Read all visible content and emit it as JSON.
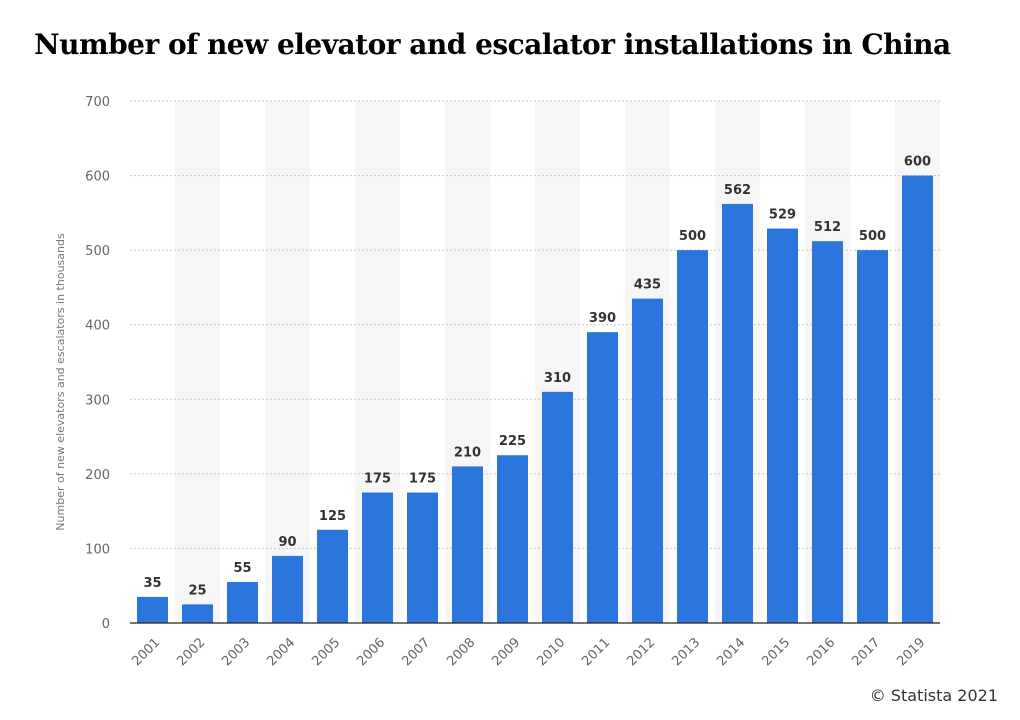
{
  "chart_data": {
    "type": "bar",
    "title": "Number of new elevator and escalator installations in China",
    "xlabel": "",
    "ylabel": "Number of new elevators and escalators in thousands",
    "categories": [
      "2001",
      "2002",
      "2003",
      "2004",
      "2005",
      "2006",
      "2007",
      "2008",
      "2009",
      "2010",
      "2011",
      "2012",
      "2013",
      "2014",
      "2015",
      "2016",
      "2017",
      "2019"
    ],
    "values": [
      35,
      25,
      55,
      90,
      125,
      175,
      175,
      210,
      225,
      310,
      390,
      435,
      500,
      562,
      529,
      512,
      500,
      600
    ],
    "ylim": [
      0,
      700
    ],
    "yticks": [
      0,
      100,
      200,
      300,
      400,
      500,
      600,
      700
    ],
    "grid": true,
    "legend": "none",
    "bar_color": "#2a76dd"
  },
  "footer": {
    "copyright": "© Statista 2021"
  }
}
